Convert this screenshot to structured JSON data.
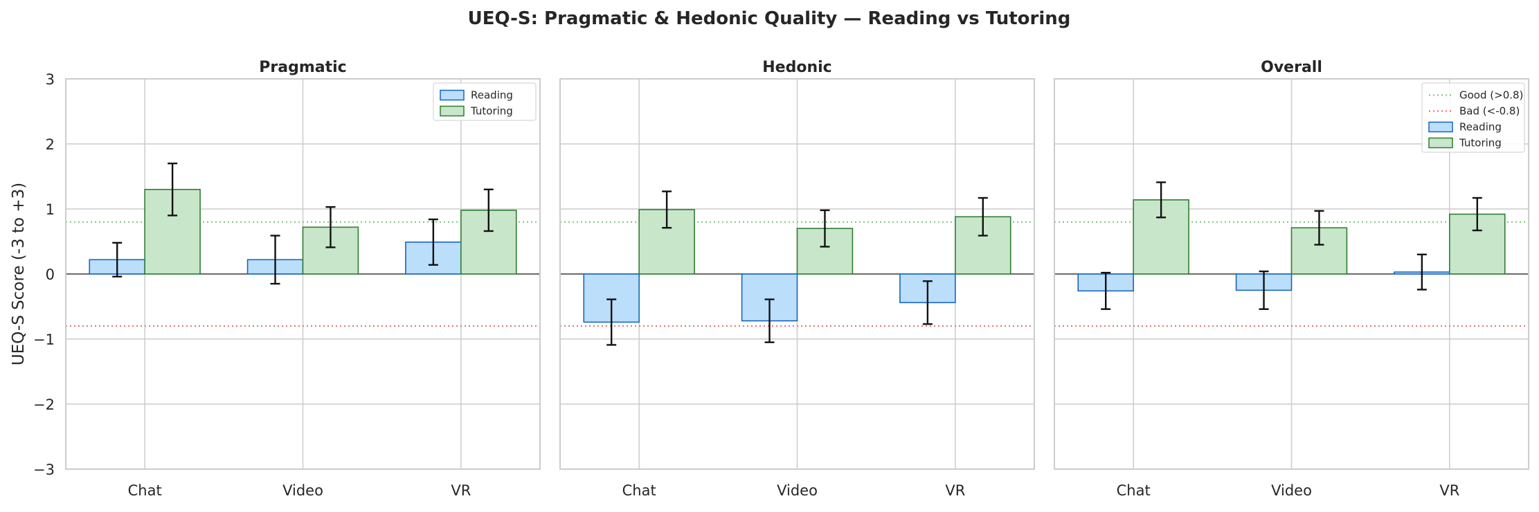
{
  "figure": {
    "title": "UEQ-S: Pragmatic & Hedonic Quality — Reading vs Tutoring",
    "ylabel": "UEQ-S Score (-3 to +3)"
  },
  "colors": {
    "reading_fill": "#bbdefb",
    "reading_edge": "#1565c0",
    "tutoring_fill": "#c8e6c9",
    "tutoring_edge": "#2e7d32",
    "good_line": "#81c784",
    "bad_line": "#e57373",
    "grid": "#cccccc"
  },
  "chart_data": [
    {
      "type": "bar",
      "title": "Pragmatic",
      "categories": [
        "Chat",
        "Video",
        "VR"
      ],
      "ylim": [
        -3,
        3
      ],
      "yticks": [
        -3,
        -2,
        -1,
        0,
        1,
        2,
        3
      ],
      "grid": true,
      "legend": "top-right",
      "legend_entries": [
        "Reading",
        "Tutoring"
      ],
      "series": [
        {
          "name": "Reading",
          "values": [
            0.22,
            0.22,
            0.49
          ],
          "err": [
            0.26,
            0.37,
            0.35
          ]
        },
        {
          "name": "Tutoring",
          "values": [
            1.3,
            0.72,
            0.98
          ],
          "err": [
            0.4,
            0.31,
            0.32
          ]
        }
      ],
      "reference_lines": [
        0.8,
        -0.8
      ]
    },
    {
      "type": "bar",
      "title": "Hedonic",
      "categories": [
        "Chat",
        "Video",
        "VR"
      ],
      "ylim": [
        -3,
        3
      ],
      "yticks": [
        -3,
        -2,
        -1,
        0,
        1,
        2,
        3
      ],
      "grid": true,
      "legend_entries": [],
      "series": [
        {
          "name": "Reading",
          "values": [
            -0.74,
            -0.72,
            -0.44
          ],
          "err": [
            0.35,
            0.33,
            0.33
          ]
        },
        {
          "name": "Tutoring",
          "values": [
            0.99,
            0.7,
            0.88
          ],
          "err": [
            0.28,
            0.28,
            0.29
          ]
        }
      ],
      "reference_lines": [
        0.8,
        -0.8
      ]
    },
    {
      "type": "bar",
      "title": "Overall",
      "categories": [
        "Chat",
        "Video",
        "VR"
      ],
      "ylim": [
        -3,
        3
      ],
      "yticks": [
        -3,
        -2,
        -1,
        0,
        1,
        2,
        3
      ],
      "grid": true,
      "legend": "top-right",
      "legend_entries": [
        "Good (>0.8)",
        "Bad (<-0.8)",
        "Reading",
        "Tutoring"
      ],
      "series": [
        {
          "name": "Reading",
          "values": [
            -0.26,
            -0.25,
            0.03
          ],
          "err": [
            0.28,
            0.29,
            0.27
          ]
        },
        {
          "name": "Tutoring",
          "values": [
            1.14,
            0.71,
            0.92
          ],
          "err": [
            0.27,
            0.26,
            0.25
          ]
        }
      ],
      "reference_lines": [
        0.8,
        -0.8
      ]
    }
  ]
}
